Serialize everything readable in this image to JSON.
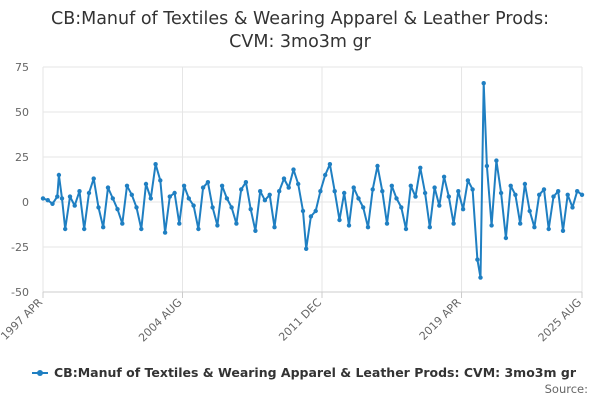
{
  "colors": {
    "series": "#1f7fc2",
    "grid": "#e6e6e6",
    "text": "#666666",
    "title": "#333333"
  },
  "chart_data": {
    "type": "line",
    "title_line1": "CB:Manuf of Textiles & Wearing Apparel & Leather Prods:",
    "title_line2": "CVM: 3mo3m gr",
    "ylim": [
      -50,
      75
    ],
    "y_ticks": [
      "75",
      "50",
      "25",
      "0",
      "-25",
      "-50"
    ],
    "x_range": [
      "1997-04",
      "2025-08"
    ],
    "x_ticks": [
      {
        "date": "1997-04",
        "label": "1997 APR"
      },
      {
        "date": "2004-08",
        "label": "2004 AUG"
      },
      {
        "date": "2011-12",
        "label": "2011 DEC"
      },
      {
        "date": "2019-04",
        "label": "2019 APR"
      },
      {
        "date": "2025-08",
        "label": "2025 AUG"
      }
    ],
    "grid": true,
    "legend_position": "bottom",
    "source_label": "Source:",
    "series": [
      {
        "name": "CB:Manuf of Textiles & Wearing Apparel & Leather Prods: CVM: 3mo3m gr",
        "points": [
          [
            "1997-04",
            2
          ],
          [
            "1997-07",
            1
          ],
          [
            "1997-10",
            -1
          ],
          [
            "1998-01",
            3
          ],
          [
            "1998-02",
            15
          ],
          [
            "1998-04",
            2
          ],
          [
            "1998-06",
            -15
          ],
          [
            "1998-09",
            3
          ],
          [
            "1998-12",
            -2
          ],
          [
            "1999-03",
            6
          ],
          [
            "1999-06",
            -15
          ],
          [
            "1999-09",
            5
          ],
          [
            "1999-12",
            13
          ],
          [
            "2000-03",
            -3
          ],
          [
            "2000-06",
            -14
          ],
          [
            "2000-09",
            8
          ],
          [
            "2000-12",
            2
          ],
          [
            "2001-03",
            -4
          ],
          [
            "2001-06",
            -12
          ],
          [
            "2001-09",
            9
          ],
          [
            "2001-12",
            4
          ],
          [
            "2002-03",
            -3
          ],
          [
            "2002-06",
            -15
          ],
          [
            "2002-09",
            10
          ],
          [
            "2002-12",
            2
          ],
          [
            "2003-03",
            21
          ],
          [
            "2003-06",
            12
          ],
          [
            "2003-09",
            -17
          ],
          [
            "2003-12",
            3
          ],
          [
            "2004-03",
            5
          ],
          [
            "2004-06",
            -12
          ],
          [
            "2004-09",
            9
          ],
          [
            "2004-12",
            2
          ],
          [
            "2005-03",
            -2
          ],
          [
            "2005-06",
            -15
          ],
          [
            "2005-09",
            8
          ],
          [
            "2005-12",
            11
          ],
          [
            "2006-03",
            -3
          ],
          [
            "2006-06",
            -13
          ],
          [
            "2006-09",
            9
          ],
          [
            "2006-12",
            2
          ],
          [
            "2007-03",
            -3
          ],
          [
            "2007-06",
            -12
          ],
          [
            "2007-09",
            7
          ],
          [
            "2007-12",
            11
          ],
          [
            "2008-03",
            -4
          ],
          [
            "2008-06",
            -16
          ],
          [
            "2008-09",
            6
          ],
          [
            "2008-12",
            1
          ],
          [
            "2009-03",
            4
          ],
          [
            "2009-06",
            -14
          ],
          [
            "2009-09",
            6
          ],
          [
            "2009-12",
            13
          ],
          [
            "2010-03",
            8
          ],
          [
            "2010-06",
            18
          ],
          [
            "2010-09",
            10
          ],
          [
            "2010-12",
            -5
          ],
          [
            "2011-02",
            -26
          ],
          [
            "2011-05",
            -8
          ],
          [
            "2011-08",
            -5
          ],
          [
            "2011-11",
            6
          ],
          [
            "2012-02",
            15
          ],
          [
            "2012-05",
            21
          ],
          [
            "2012-08",
            6
          ],
          [
            "2012-11",
            -10
          ],
          [
            "2013-02",
            5
          ],
          [
            "2013-05",
            -13
          ],
          [
            "2013-08",
            8
          ],
          [
            "2013-11",
            2
          ],
          [
            "2014-02",
            -3
          ],
          [
            "2014-05",
            -14
          ],
          [
            "2014-08",
            7
          ],
          [
            "2014-11",
            20
          ],
          [
            "2015-02",
            6
          ],
          [
            "2015-05",
            -12
          ],
          [
            "2015-08",
            9
          ],
          [
            "2015-11",
            2
          ],
          [
            "2016-02",
            -3
          ],
          [
            "2016-05",
            -15
          ],
          [
            "2016-08",
            9
          ],
          [
            "2016-11",
            3
          ],
          [
            "2017-02",
            19
          ],
          [
            "2017-05",
            5
          ],
          [
            "2017-08",
            -14
          ],
          [
            "2017-11",
            8
          ],
          [
            "2018-02",
            -2
          ],
          [
            "2018-05",
            14
          ],
          [
            "2018-08",
            3
          ],
          [
            "2018-11",
            -12
          ],
          [
            "2019-02",
            6
          ],
          [
            "2019-05",
            -4
          ],
          [
            "2019-08",
            12
          ],
          [
            "2019-11",
            7
          ],
          [
            "2020-02",
            -32
          ],
          [
            "2020-04",
            -42
          ],
          [
            "2020-06",
            66
          ],
          [
            "2020-08",
            20
          ],
          [
            "2020-11",
            -13
          ],
          [
            "2021-02",
            23
          ],
          [
            "2021-05",
            5
          ],
          [
            "2021-08",
            -20
          ],
          [
            "2021-11",
            9
          ],
          [
            "2022-02",
            4
          ],
          [
            "2022-05",
            -12
          ],
          [
            "2022-08",
            10
          ],
          [
            "2022-11",
            -5
          ],
          [
            "2023-02",
            -14
          ],
          [
            "2023-05",
            4
          ],
          [
            "2023-08",
            7
          ],
          [
            "2023-11",
            -15
          ],
          [
            "2024-02",
            3
          ],
          [
            "2024-05",
            6
          ],
          [
            "2024-08",
            -16
          ],
          [
            "2024-11",
            4
          ],
          [
            "2025-02",
            -3
          ],
          [
            "2025-05",
            6
          ],
          [
            "2025-08",
            4
          ]
        ]
      }
    ]
  }
}
